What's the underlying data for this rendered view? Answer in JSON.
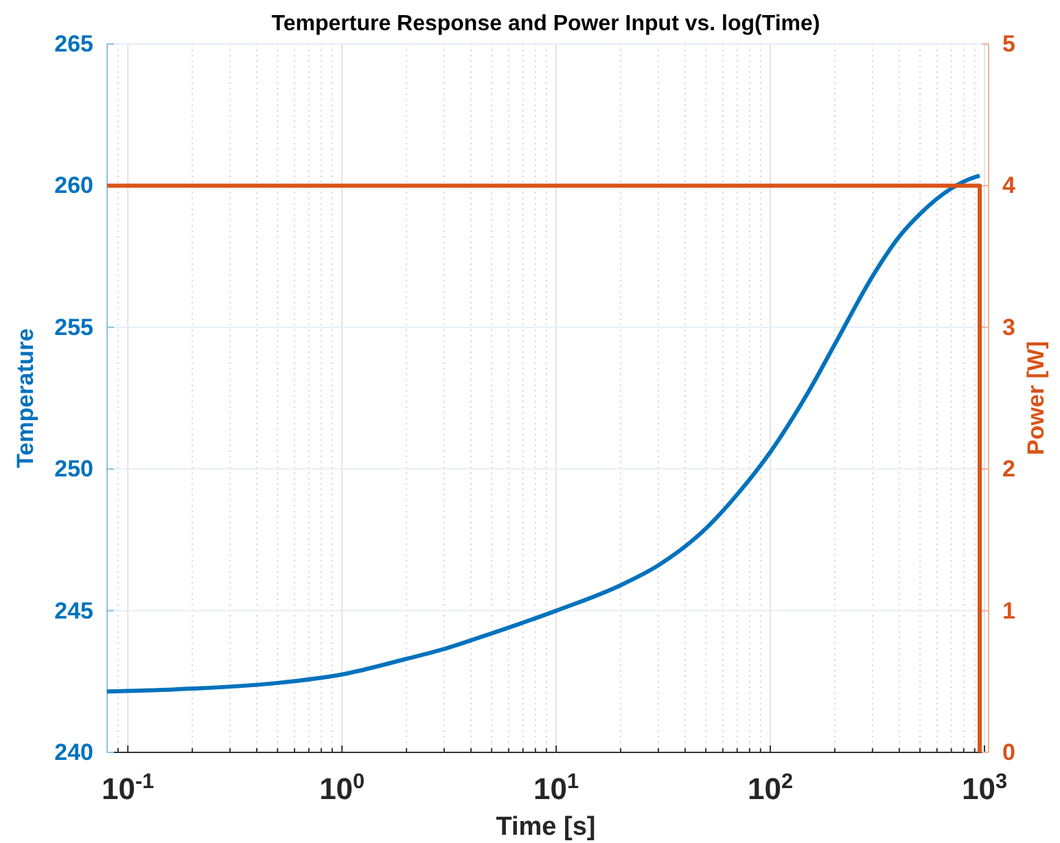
{
  "chart_data": {
    "type": "line",
    "title": "Temperture Response and Power Input vs. log(Time)",
    "xlabel": "Time [s]",
    "ylabel": "Temperature",
    "y2label": "Power [W]",
    "log": "x",
    "grid": true,
    "line_style": "solid",
    "marker": "none",
    "xlim": [
      0.08,
      1000
    ],
    "xticks": [
      {
        "value": 0.1,
        "label": "10$^{-1}$"
      },
      {
        "value": 1,
        "label": "10$^{0}$"
      },
      {
        "value": 10,
        "label": "10$^{1}$"
      },
      {
        "value": 100,
        "label": "10$^{2}$"
      },
      {
        "value": 1000,
        "label": "10$^{3}$"
      }
    ],
    "ylim": [
      240,
      265
    ],
    "yticks": [
      240,
      245,
      250,
      255,
      260,
      265
    ],
    "y2lim": [
      0,
      5
    ],
    "y2ticks": [
      0,
      1,
      2,
      3,
      4,
      5
    ],
    "series": [
      {
        "color": "#0072bd",
        "x": [
          0.08,
          0.2,
          0.5,
          1,
          2,
          3,
          5,
          10,
          20,
          30,
          50,
          70,
          100,
          150,
          200,
          300,
          400,
          500,
          700,
          900,
          950
        ],
        "values": [
          242.15,
          242.25,
          242.45,
          242.75,
          243.3,
          243.65,
          244.2,
          245.0,
          245.9,
          246.6,
          247.9,
          249.1,
          250.6,
          252.7,
          254.4,
          256.8,
          258.2,
          259.0,
          259.9,
          260.3,
          260.35
        ]
      },
      {
        "color": "#d95319",
        "axis": "y2",
        "x": [
          0.08,
          950,
          950
        ],
        "values": [
          4,
          4,
          0
        ]
      }
    ]
  }
}
